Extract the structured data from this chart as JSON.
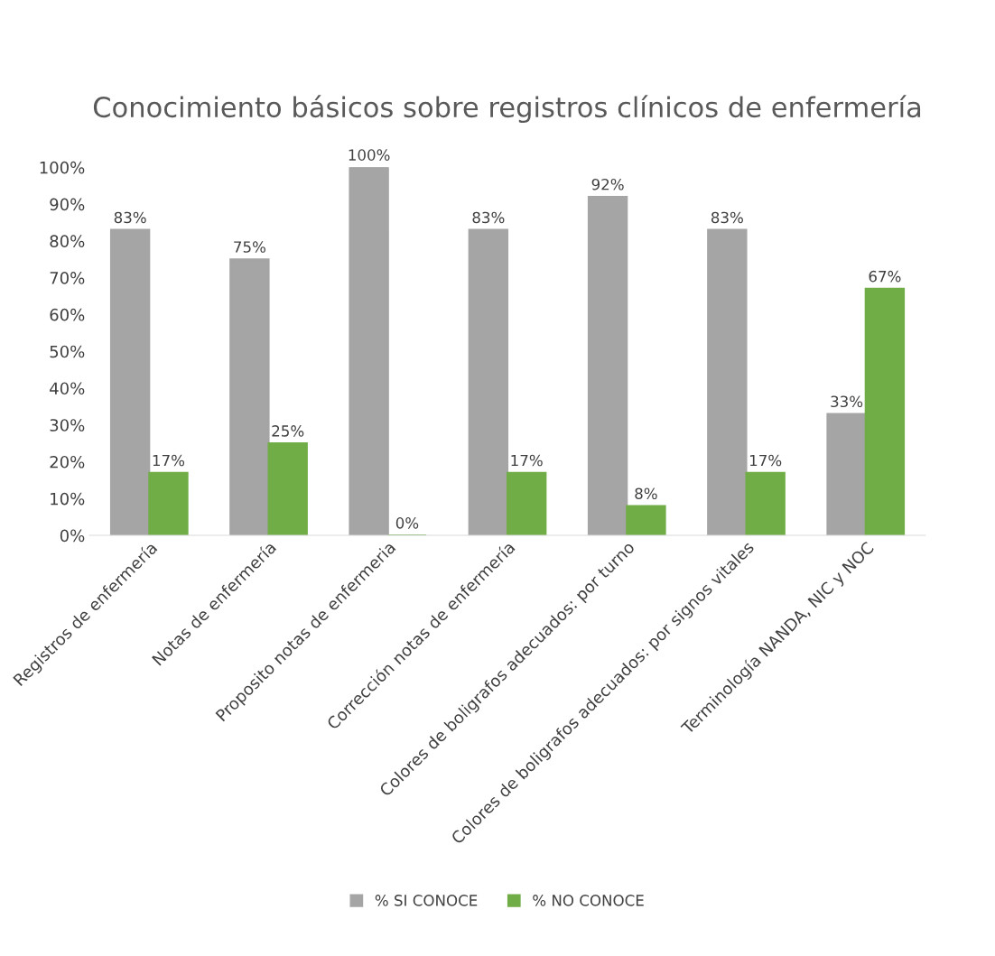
{
  "chart_data": {
    "type": "bar",
    "title": "Conocimiento básicos sobre registros clínicos de enfermería",
    "categories": [
      "Registros de enfermería",
      "Notas de enfermería",
      "Proposito notas de enfermeria",
      "Corrección notas de enfermería",
      "Colores de boligrafos adecuados: por turno",
      "Colores de boligrafos adecuados: por signos vitales",
      "Terminología NANDA, NIC y NOC"
    ],
    "series": [
      {
        "name": "% SI CONOCE",
        "color": "#a5a5a5",
        "values": [
          83,
          75,
          100,
          83,
          92,
          83,
          33
        ],
        "value_labels": [
          "83%",
          "75%",
          "100%",
          "83%",
          "92%",
          "83%",
          "33%"
        ]
      },
      {
        "name": "% NO CONOCE",
        "color": "#70ad47",
        "values": [
          17,
          25,
          0,
          17,
          8,
          17,
          67
        ],
        "value_labels": [
          "17%",
          "25%",
          "0%",
          "17%",
          "8%",
          "17%",
          "67%"
        ]
      }
    ],
    "ylim": [
      0,
      100
    ],
    "yticks": [
      {
        "value": 0,
        "label": "0%"
      },
      {
        "value": 10,
        "label": "10%"
      },
      {
        "value": 20,
        "label": "20%"
      },
      {
        "value": 30,
        "label": "30%"
      },
      {
        "value": 40,
        "label": "40%"
      },
      {
        "value": 50,
        "label": "50%"
      },
      {
        "value": 60,
        "label": "60%"
      },
      {
        "value": 70,
        "label": "70%"
      },
      {
        "value": 80,
        "label": "80%"
      },
      {
        "value": 90,
        "label": "90%"
      },
      {
        "value": 100,
        "label": "100%"
      }
    ],
    "grid": false,
    "legend": "bottom"
  }
}
